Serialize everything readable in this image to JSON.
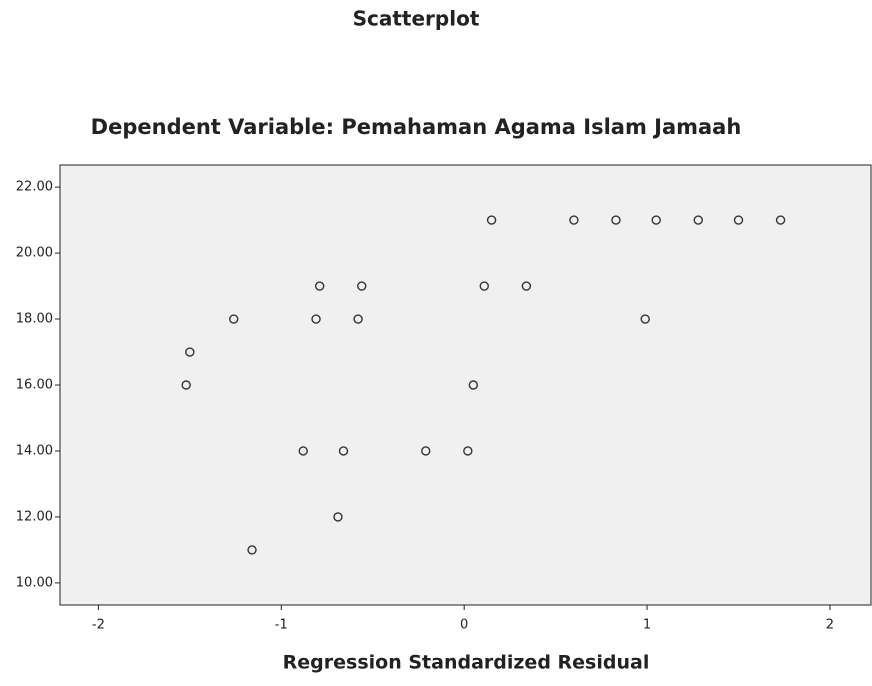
{
  "chart_data": {
    "type": "scatter",
    "title": "Scatterplot",
    "subtitle": "Dependent Variable: Pemahaman Agama Islam Jamaah",
    "x_label": "Regression Standardized Residual",
    "x": [
      0.15,
      0.6,
      0.83,
      1.05,
      1.28,
      1.5,
      1.73,
      -0.79,
      -0.56,
      0.11,
      0.34,
      -1.26,
      -0.81,
      -0.58,
      0.99,
      -1.5,
      -1.52,
      0.05,
      -0.88,
      -0.66,
      -0.21,
      0.02,
      -0.69,
      -1.16
    ],
    "y": [
      21,
      21,
      21,
      21,
      21,
      21,
      21,
      19,
      19,
      19,
      19,
      18,
      18,
      18,
      18,
      17,
      16,
      16,
      14,
      14,
      14,
      14,
      12,
      11
    ],
    "color": "#333333",
    "xlim": [
      -2.21,
      2.23
    ],
    "ylim": [
      9.33,
      22.67
    ],
    "xticks": [
      -2,
      -1,
      0,
      1,
      2
    ],
    "yticks": [
      {
        "value": 10,
        "label": "10.00"
      },
      {
        "value": 12,
        "label": "12.00"
      },
      {
        "value": 14,
        "label": "14.00"
      },
      {
        "value": 16,
        "label": "16.00"
      },
      {
        "value": 18,
        "label": "18.00"
      },
      {
        "value": 20,
        "label": "20.00"
      },
      {
        "value": 22,
        "label": "22.00"
      }
    ]
  }
}
